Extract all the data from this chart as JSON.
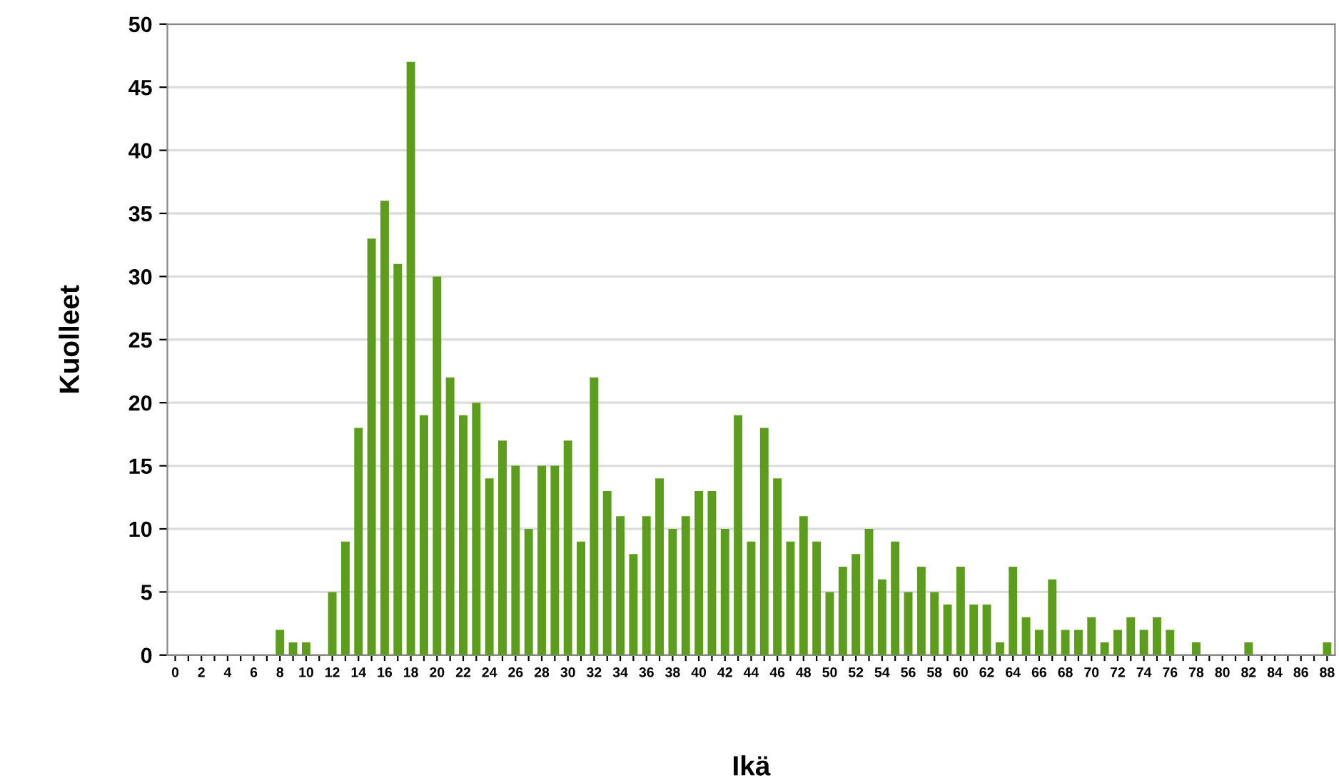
{
  "chart_data": {
    "type": "bar",
    "xlabel": "Ikä",
    "ylabel": "Kuolleet",
    "categories": [
      "0",
      null,
      "2",
      null,
      "4",
      null,
      "6",
      null,
      "8",
      null,
      "10",
      null,
      "12",
      null,
      "14",
      null,
      "16",
      null,
      "18",
      null,
      "20",
      null,
      "22",
      null,
      "24",
      null,
      "26",
      null,
      "28",
      null,
      "30",
      null,
      "32",
      null,
      "34",
      null,
      "36",
      null,
      "38",
      null,
      "40",
      null,
      "42",
      null,
      "44",
      null,
      "46",
      null,
      "48",
      null,
      "50",
      null,
      "52",
      null,
      "54",
      null,
      "56",
      null,
      "58",
      null,
      "60",
      null,
      "62",
      null,
      "64",
      null,
      "66",
      null,
      "68",
      null,
      "70",
      null,
      "72",
      null,
      "74",
      null,
      "76",
      null,
      "78",
      null,
      "80",
      null,
      "82",
      null,
      "84",
      null,
      "86",
      null,
      "88"
    ],
    "values": [
      0,
      0,
      0,
      0,
      0,
      0,
      0,
      0,
      2,
      1,
      1,
      0,
      5,
      9,
      18,
      33,
      36,
      31,
      47,
      19,
      30,
      22,
      19,
      20,
      14,
      17,
      15,
      10,
      15,
      15,
      17,
      9,
      22,
      13,
      11,
      8,
      11,
      14,
      10,
      11,
      13,
      13,
      10,
      19,
      9,
      18,
      14,
      9,
      11,
      9,
      5,
      7,
      8,
      10,
      6,
      9,
      5,
      7,
      5,
      4,
      7,
      4,
      4,
      1,
      7,
      3,
      2,
      6,
      2,
      2,
      3,
      1,
      2,
      3,
      2,
      3,
      2,
      0,
      1,
      0,
      0,
      0,
      1,
      0,
      0,
      0,
      0,
      0,
      1
    ],
    "color": "#5c9e1c",
    "ylim": [
      0,
      50
    ],
    "yticks": [
      0,
      5,
      10,
      15,
      20,
      25,
      30,
      35,
      40,
      45,
      50
    ],
    "grid": "y"
  }
}
